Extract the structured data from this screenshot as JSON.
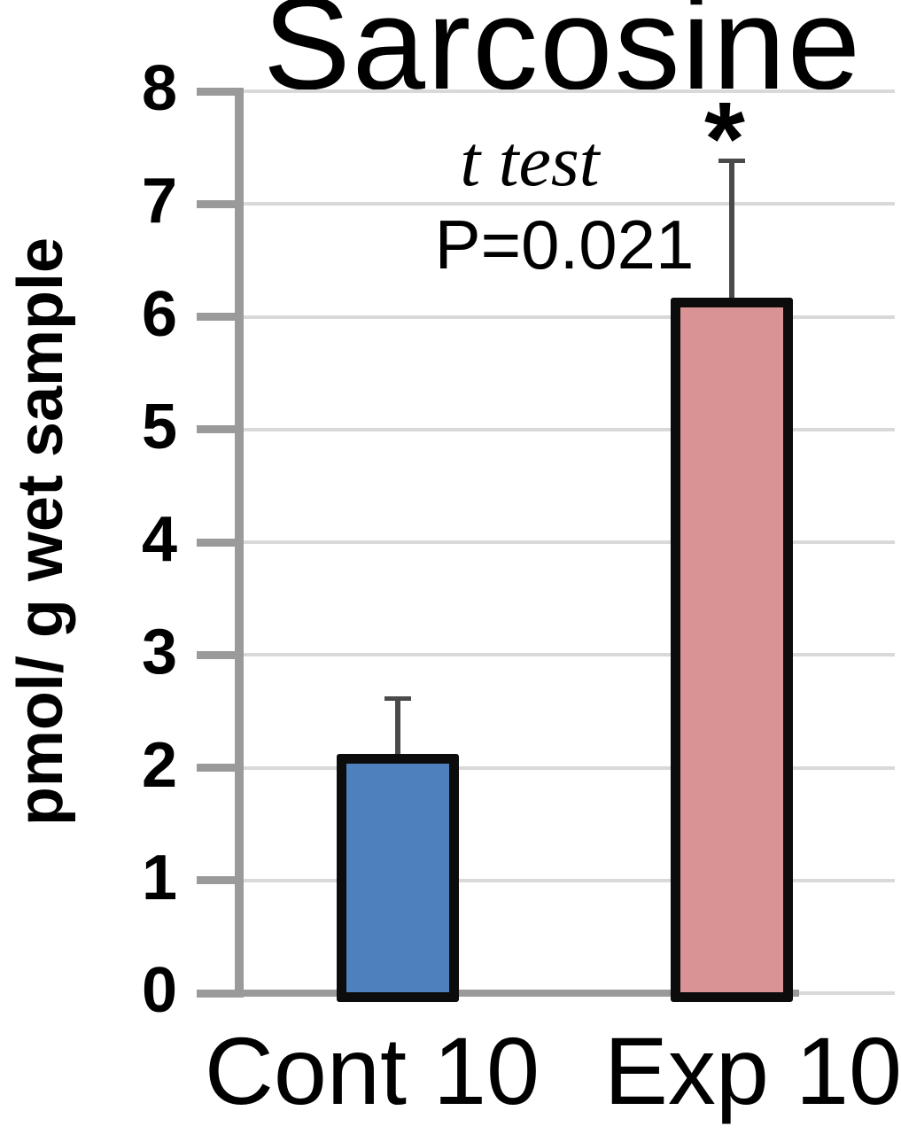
{
  "chart_data": {
    "type": "bar",
    "title": "Sarcosine",
    "ylabel": "pmol/ g wet sample",
    "xlabel": "",
    "categories": [
      "Cont 10",
      "Exp 10"
    ],
    "series": [
      {
        "name": "amount",
        "values": [
          2.09,
          6.14
        ],
        "errors_plus": [
          0.52,
          1.24
        ]
      }
    ],
    "ylim": [
      0,
      8
    ],
    "yticks": [
      0,
      1,
      2,
      3,
      4,
      5,
      6,
      7,
      8
    ],
    "grid": "horizontal-on",
    "legend": "none",
    "annotations": {
      "test_label": "t test",
      "p_value": "P=0.021",
      "significance_marker": "*",
      "significance_on": "Exp 10"
    },
    "colors": {
      "bar_fills": [
        "#4E80BD",
        "#D99394"
      ],
      "bar_border": "#0c0c0c",
      "axis": "#9a9a9a",
      "gridline": "#d9d9d9",
      "error_bar": "#4a4a4a",
      "text": "#000000",
      "background": "#ffffff"
    }
  }
}
